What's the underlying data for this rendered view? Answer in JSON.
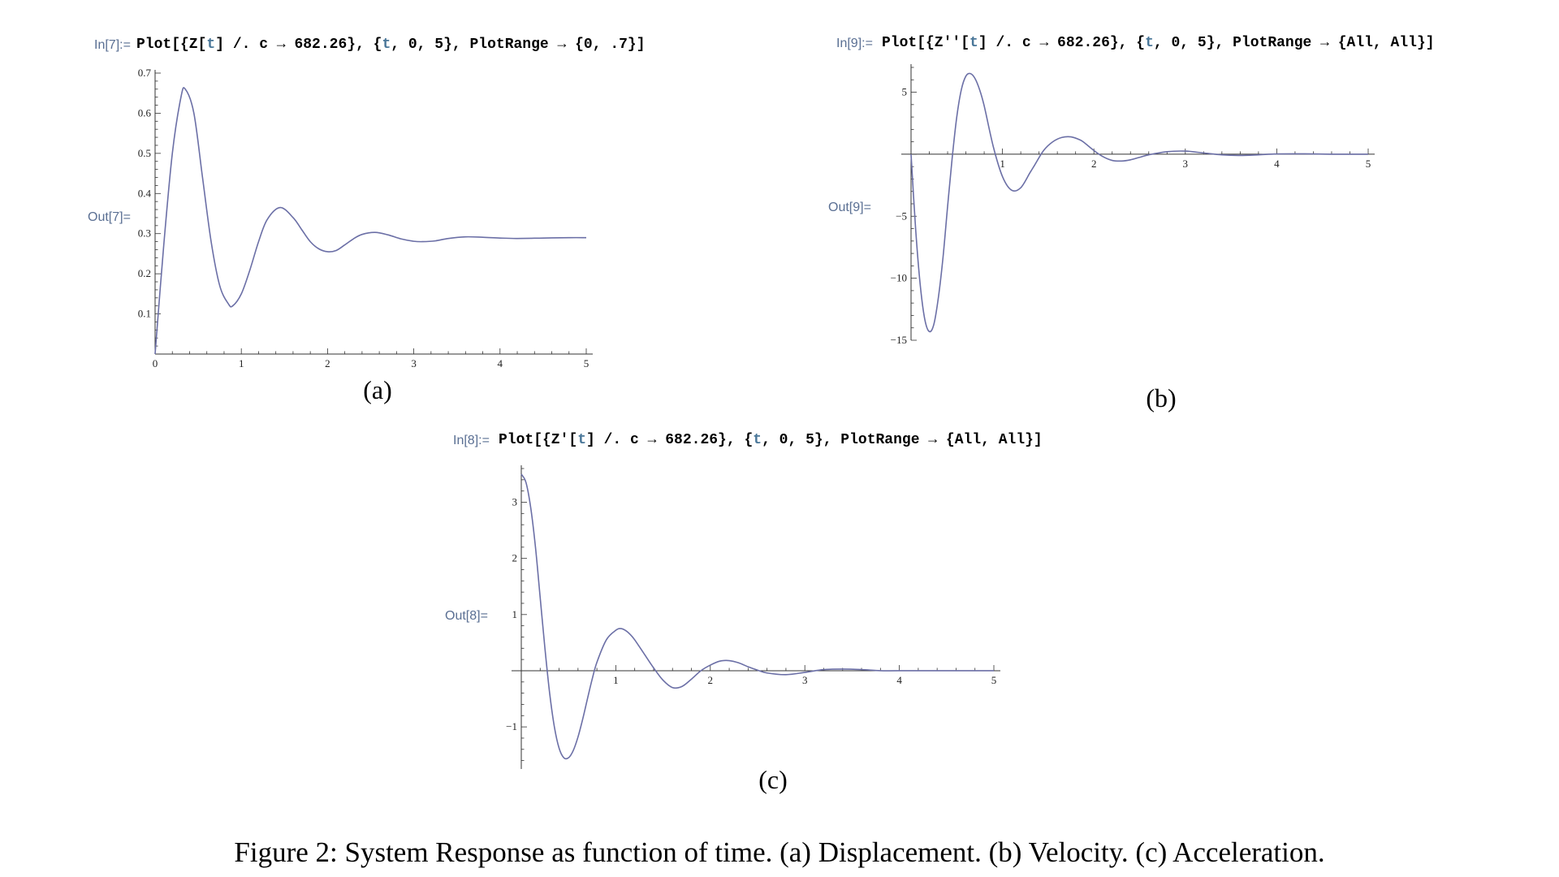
{
  "caption": "Figure 2: System Response as function of time. (a) Displacement. (b) Velocity. (c) Acceleration.",
  "panels": {
    "a": {
      "in_label": "In[7]:=",
      "out_label": "Out[7]=",
      "cmd": [
        {
          "t": "Plot[{Z[",
          "c": "k"
        },
        {
          "t": "t",
          "c": "v"
        },
        {
          "t": "] /. c → 682.26}, {",
          "c": "k"
        },
        {
          "t": "t",
          "c": "v"
        },
        {
          "t": ", 0, 5}, PlotRange → {0, .7}]",
          "c": "k"
        }
      ],
      "sublabel": "(a)"
    },
    "b": {
      "in_label": "In[9]:=",
      "out_label": "Out[9]=",
      "cmd": [
        {
          "t": "Plot[{Z''[",
          "c": "k"
        },
        {
          "t": "t",
          "c": "v"
        },
        {
          "t": "] /. c → 682.26}, {",
          "c": "k"
        },
        {
          "t": "t",
          "c": "v"
        },
        {
          "t": ", 0, 5}, PlotRange → {All, All}]",
          "c": "k"
        }
      ],
      "sublabel": "(b)"
    },
    "c": {
      "in_label": "In[8]:=",
      "out_label": "Out[8]=",
      "cmd": [
        {
          "t": "Plot[{Z'[",
          "c": "k"
        },
        {
          "t": "t",
          "c": "v"
        },
        {
          "t": "] /. c → 682.26}, {",
          "c": "k"
        },
        {
          "t": "t",
          "c": "v"
        },
        {
          "t": ", 0, 5}, PlotRange → {All, All}]",
          "c": "k"
        }
      ],
      "sublabel": "(c)"
    }
  },
  "chart_data": [
    {
      "id": "a",
      "type": "line",
      "title": "",
      "xlabel": "",
      "ylabel": "",
      "xlim": [
        0,
        5
      ],
      "ylim": [
        0,
        0.7
      ],
      "x_ticks": [
        0,
        1,
        2,
        3,
        4,
        5
      ],
      "y_ticks": [
        0.1,
        0.2,
        0.3,
        0.4,
        0.5,
        0.6,
        0.7
      ],
      "axes_origin": "frame",
      "series_color": "#6b6fa6",
      "series": [
        {
          "x": [
            0,
            0.1,
            0.2,
            0.3,
            0.35,
            0.45,
            0.55,
            0.65,
            0.75,
            0.85,
            0.9,
            1.0,
            1.1,
            1.2,
            1.3,
            1.45,
            1.6,
            1.7,
            1.8,
            1.9,
            2.0,
            2.1,
            2.2,
            2.3,
            2.4,
            2.55,
            2.7,
            2.85,
            3.0,
            3.1,
            3.25,
            3.4,
            3.6,
            3.8,
            4.0,
            4.2,
            4.5,
            4.8,
            5.0
          ],
          "y": [
            0,
            0.27,
            0.5,
            0.64,
            0.66,
            0.6,
            0.44,
            0.28,
            0.17,
            0.125,
            0.12,
            0.15,
            0.21,
            0.28,
            0.335,
            0.365,
            0.34,
            0.31,
            0.28,
            0.262,
            0.255,
            0.258,
            0.272,
            0.287,
            0.298,
            0.303,
            0.297,
            0.287,
            0.281,
            0.28,
            0.282,
            0.288,
            0.292,
            0.291,
            0.289,
            0.288,
            0.289,
            0.29,
            0.29
          ]
        }
      ]
    },
    {
      "id": "b",
      "type": "line",
      "title": "",
      "xlabel": "",
      "ylabel": "",
      "xlim": [
        0,
        5
      ],
      "ylim": [
        -15,
        7
      ],
      "x_ticks": [
        1,
        2,
        3,
        4,
        5
      ],
      "y_ticks": [
        -15,
        -10,
        -5,
        5
      ],
      "axes_origin": "zero",
      "series_color": "#6b6fa6",
      "series": [
        {
          "x": [
            0,
            0.05,
            0.1,
            0.15,
            0.2,
            0.25,
            0.3,
            0.35,
            0.4,
            0.45,
            0.5,
            0.55,
            0.6,
            0.65,
            0.7,
            0.75,
            0.8,
            0.9,
            1.0,
            1.1,
            1.2,
            1.3,
            1.35,
            1.45,
            1.55,
            1.65,
            1.75,
            1.85,
            1.9,
            2.0,
            2.1,
            2.2,
            2.3,
            2.4,
            2.5,
            2.6,
            2.8,
            3.0,
            3.2,
            3.4,
            3.6,
            3.8,
            4.0,
            4.3,
            4.6,
            5.0
          ],
          "y": [
            0,
            -6,
            -10.5,
            -13.3,
            -14.3,
            -13.7,
            -11.5,
            -8.3,
            -4.2,
            -0.3,
            3.0,
            5.2,
            6.3,
            6.5,
            6.1,
            5.2,
            3.9,
            0.6,
            -1.8,
            -2.9,
            -2.7,
            -1.5,
            -0.9,
            0.3,
            1.0,
            1.35,
            1.4,
            1.15,
            0.9,
            0.3,
            -0.2,
            -0.5,
            -0.55,
            -0.45,
            -0.25,
            -0.05,
            0.2,
            0.25,
            0.1,
            -0.05,
            -0.1,
            -0.05,
            0.02,
            0.03,
            0.0,
            0.0
          ]
        }
      ]
    },
    {
      "id": "c",
      "type": "line",
      "title": "",
      "xlabel": "",
      "ylabel": "",
      "xlim": [
        0,
        5
      ],
      "ylim": [
        -1.75,
        3.6
      ],
      "x_ticks": [
        1,
        2,
        3,
        4,
        5
      ],
      "y_ticks": [
        -1,
        1,
        2,
        3
      ],
      "axes_origin": "zero",
      "series_color": "#6b6fa6",
      "series": [
        {
          "x": [
            0,
            0.05,
            0.1,
            0.15,
            0.2,
            0.25,
            0.3,
            0.35,
            0.4,
            0.45,
            0.5,
            0.55,
            0.6,
            0.65,
            0.7,
            0.75,
            0.8,
            0.9,
            1.0,
            1.05,
            1.1,
            1.15,
            1.2,
            1.3,
            1.4,
            1.5,
            1.6,
            1.7,
            1.8,
            1.9,
            2.0,
            2.1,
            2.2,
            2.3,
            2.4,
            2.5,
            2.6,
            2.8,
            3.0,
            3.2,
            3.4,
            3.6,
            3.8,
            4.0,
            4.5,
            5.0
          ],
          "y": [
            3.5,
            3.35,
            2.9,
            2.2,
            1.3,
            0.4,
            -0.4,
            -1.0,
            -1.38,
            -1.55,
            -1.55,
            -1.42,
            -1.18,
            -0.86,
            -0.5,
            -0.15,
            0.15,
            0.55,
            0.72,
            0.75,
            0.72,
            0.65,
            0.55,
            0.3,
            0.05,
            -0.17,
            -0.3,
            -0.28,
            -0.15,
            0.0,
            0.1,
            0.17,
            0.18,
            0.14,
            0.07,
            0.01,
            -0.04,
            -0.07,
            -0.03,
            0.02,
            0.03,
            0.02,
            0.0,
            0.0,
            0.0,
            0.0
          ]
        }
      ]
    }
  ]
}
